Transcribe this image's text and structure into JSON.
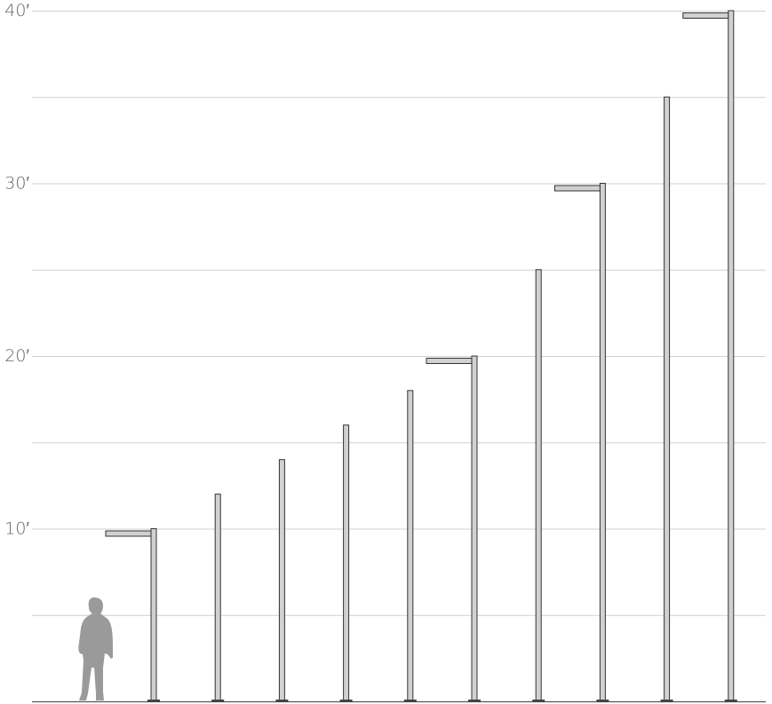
{
  "chart_data": {
    "type": "bar",
    "title": "",
    "xlabel": "",
    "ylabel": "",
    "ylim": [
      0,
      40
    ],
    "grid": true,
    "grid_step": 5,
    "y_tick_labels": [
      {
        "value": 10,
        "label": "10′"
      },
      {
        "value": 20,
        "label": "20′"
      },
      {
        "value": 30,
        "label": "30′"
      },
      {
        "value": 40,
        "label": "40′"
      }
    ],
    "poles": [
      {
        "height": 10,
        "arm": true
      },
      {
        "height": 12,
        "arm": false
      },
      {
        "height": 14,
        "arm": false
      },
      {
        "height": 16,
        "arm": false
      },
      {
        "height": 18,
        "arm": false
      },
      {
        "height": 20,
        "arm": true
      },
      {
        "height": 25,
        "arm": false
      },
      {
        "height": 30,
        "arm": true
      },
      {
        "height": 35,
        "arm": false
      },
      {
        "height": 40,
        "arm": true
      }
    ],
    "human_figure": {
      "icon": "human-silhouette-icon",
      "height": 6
    }
  },
  "colors": {
    "grid": "#d0d0d0",
    "axis": "#555555",
    "pole_fill": "#d3d0d1",
    "pole_stroke": "#333333",
    "person": "#9a9a9a",
    "base": "#444444",
    "label": "#666666"
  }
}
